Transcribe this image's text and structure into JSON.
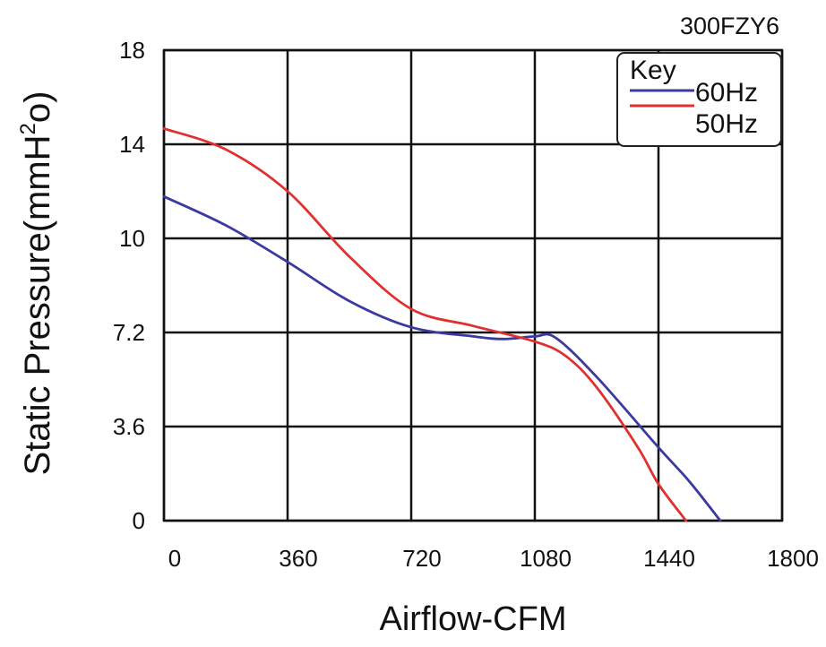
{
  "chart_data": {
    "type": "line",
    "model_label": "300FZY6",
    "xlabel": "Airflow-CFM",
    "ylabel_main": "Static Pressure(mmH",
    "ylabel_sup": "2",
    "ylabel_tail": "o)",
    "x_ticks": [
      "0",
      "360",
      "720",
      "1080",
      "1440",
      "1800"
    ],
    "y_ticks": [
      "0",
      "3.6",
      "7.2",
      "10",
      "14",
      "18"
    ],
    "y_tick_values": [
      0,
      3.6,
      7.2,
      10.8,
      14.4,
      18
    ],
    "xlim": [
      0,
      1800
    ],
    "ylim": [
      0,
      18
    ],
    "grid": true,
    "legend": {
      "title": "Key",
      "placement": "top-right",
      "items": [
        "60Hz",
        "50Hz"
      ]
    },
    "series": [
      {
        "name": "60Hz",
        "color": "#3a3aa0",
        "points": [
          [
            0,
            12.4
          ],
          [
            180,
            11.3
          ],
          [
            360,
            9.9
          ],
          [
            540,
            8.4
          ],
          [
            720,
            7.4
          ],
          [
            900,
            7.05
          ],
          [
            990,
            6.95
          ],
          [
            1080,
            7.05
          ],
          [
            1140,
            7.0
          ],
          [
            1260,
            5.5
          ],
          [
            1440,
            2.8
          ],
          [
            1530,
            1.5
          ],
          [
            1620,
            0
          ]
        ]
      },
      {
        "name": "50Hz",
        "color": "#e03030",
        "points": [
          [
            0,
            15.0
          ],
          [
            180,
            14.2
          ],
          [
            360,
            12.6
          ],
          [
            540,
            10.1
          ],
          [
            720,
            8.1
          ],
          [
            900,
            7.45
          ],
          [
            1080,
            6.85
          ],
          [
            1170,
            6.3
          ],
          [
            1260,
            5.1
          ],
          [
            1380,
            2.8
          ],
          [
            1440,
            1.4
          ],
          [
            1520,
            0
          ]
        ]
      }
    ]
  }
}
